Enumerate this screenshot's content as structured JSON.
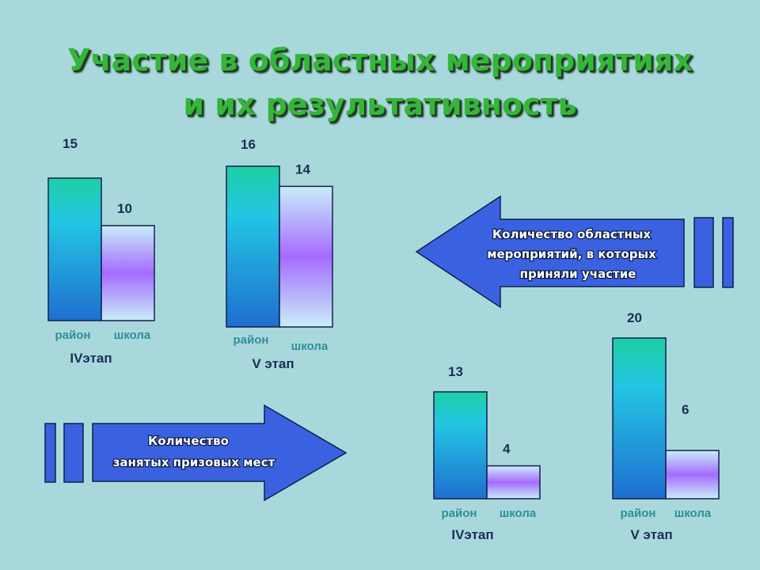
{
  "header": {
    "title_line1": "Участие в областных мероприятиях",
    "title_line2": "и их результативность"
  },
  "arrows": {
    "events_text": [
      "Количество областных",
      "мероприятий, в которых",
      "приняли участие"
    ],
    "prizes_text": [
      "Количество",
      "занятых призовых мест"
    ]
  },
  "colors": {
    "district_bar": [
      "#1ecfa3",
      "#23c6e3",
      "#1f6fd0"
    ],
    "school_bar": [
      "#c8eef8",
      "#a56bff",
      "#c8eef8"
    ],
    "arrow_fill": "#3a62e0",
    "title": "#35b53a"
  },
  "chart_data": [
    {
      "type": "bar",
      "group": "Количество областных мероприятий, в которых приняли участие",
      "stage_label": "IVэтап",
      "categories": [
        "район",
        "школа"
      ],
      "values": [
        15,
        10
      ]
    },
    {
      "type": "bar",
      "group": "Количество областных мероприятий, в которых приняли участие",
      "stage_label": "V этап",
      "categories": [
        "район",
        "школа"
      ],
      "values": [
        16,
        14
      ]
    },
    {
      "type": "bar",
      "group": "Количество занятых призовых мест",
      "stage_label": "IVэтап",
      "categories": [
        "район",
        "школа"
      ],
      "values": [
        13,
        4
      ]
    },
    {
      "type": "bar",
      "group": "Количество занятых призовых мест",
      "stage_label": "V этап",
      "categories": [
        "район",
        "школа"
      ],
      "values": [
        20,
        6
      ]
    }
  ]
}
